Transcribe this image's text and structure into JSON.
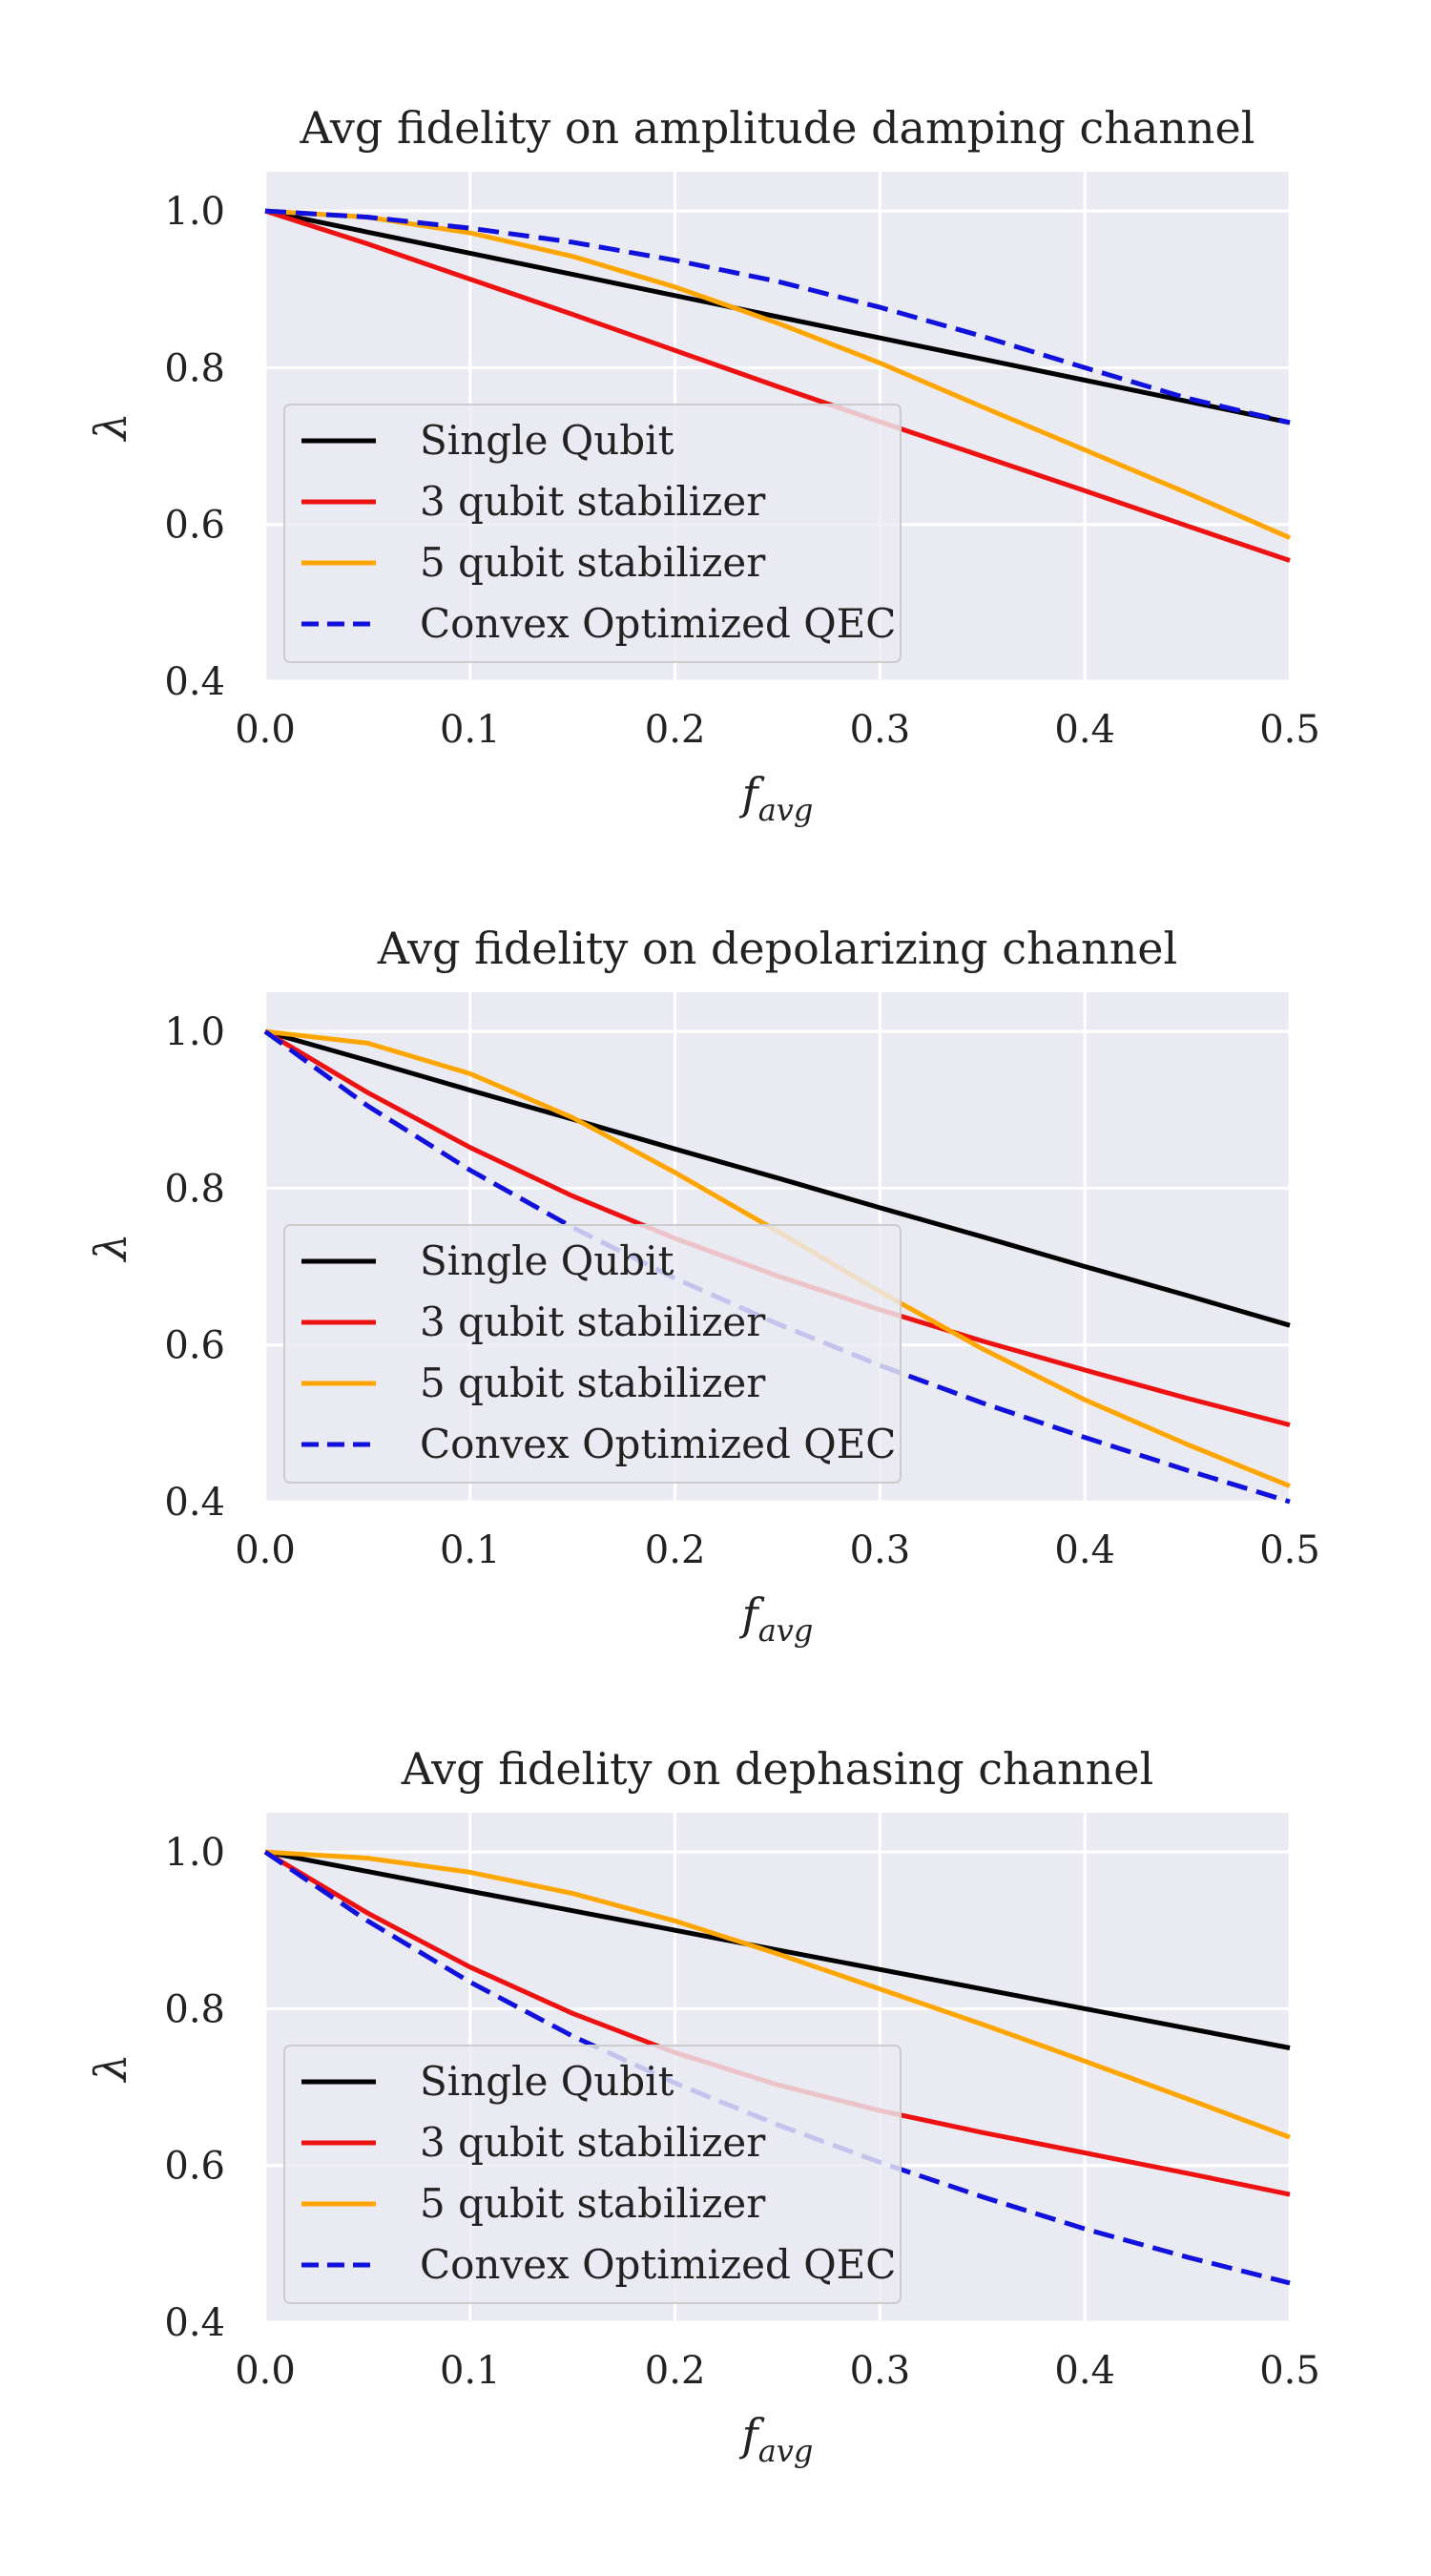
{
  "chart_data": [
    {
      "type": "line",
      "title": "Avg fidelity on amplitude damping channel",
      "xlabel": "f",
      "xlabel_sub": "avg",
      "ylabel": "λ",
      "xlim": [
        0.0,
        0.5
      ],
      "ylim": [
        0.4,
        1.05
      ],
      "xticks": [
        "0.0",
        "0.1",
        "0.2",
        "0.3",
        "0.4",
        "0.5"
      ],
      "yticks": [
        "0.4",
        "0.6",
        "0.8",
        "1.0"
      ],
      "grid": true,
      "legend_position": "lower-left",
      "x": [
        0.0,
        0.05,
        0.1,
        0.15,
        0.2,
        0.25,
        0.3,
        0.35,
        0.4,
        0.45,
        0.5
      ],
      "series": [
        {
          "name": "Single Qubit",
          "color": "#000000",
          "dash": false,
          "values": [
            1.0,
            0.973,
            0.946,
            0.919,
            0.892,
            0.865,
            0.838,
            0.811,
            0.784,
            0.757,
            0.73
          ]
        },
        {
          "name": "3 qubit stabilizer",
          "color": "#ee1111",
          "dash": false,
          "values": [
            1.0,
            0.958,
            0.913,
            0.868,
            0.822,
            0.776,
            0.731,
            0.687,
            0.643,
            0.598,
            0.554
          ]
        },
        {
          "name": "5 qubit stabilizer",
          "color": "#ffa500",
          "dash": false,
          "values": [
            1.0,
            0.992,
            0.972,
            0.942,
            0.903,
            0.857,
            0.806,
            0.75,
            0.695,
            0.64,
            0.583
          ]
        },
        {
          "name": "Convex Optimized QEC",
          "color": "#1111dd",
          "dash": true,
          "values": [
            1.0,
            0.992,
            0.978,
            0.96,
            0.937,
            0.91,
            0.877,
            0.84,
            0.8,
            0.761,
            0.73
          ]
        }
      ]
    },
    {
      "type": "line",
      "title": "Avg fidelity on depolarizing channel",
      "xlabel": "f",
      "xlabel_sub": "avg",
      "ylabel": "λ",
      "xlim": [
        0.0,
        0.5
      ],
      "ylim": [
        0.4,
        1.05
      ],
      "xticks": [
        "0.0",
        "0.1",
        "0.2",
        "0.3",
        "0.4",
        "0.5"
      ],
      "yticks": [
        "0.4",
        "0.6",
        "0.8",
        "1.0"
      ],
      "grid": true,
      "legend_position": "lower-left",
      "x": [
        0.0,
        0.05,
        0.1,
        0.15,
        0.2,
        0.25,
        0.3,
        0.35,
        0.4,
        0.45,
        0.5
      ],
      "series": [
        {
          "name": "Single Qubit",
          "color": "#000000",
          "dash": false,
          "values": [
            1.0,
            0.963,
            0.925,
            0.888,
            0.85,
            0.813,
            0.775,
            0.738,
            0.7,
            0.663,
            0.625
          ]
        },
        {
          "name": "3 qubit stabilizer",
          "color": "#ee1111",
          "dash": false,
          "values": [
            1.0,
            0.922,
            0.852,
            0.79,
            0.736,
            0.688,
            0.645,
            0.605,
            0.568,
            0.532,
            0.498
          ]
        },
        {
          "name": "5 qubit stabilizer",
          "color": "#ffa500",
          "dash": false,
          "values": [
            1.0,
            0.985,
            0.946,
            0.89,
            0.82,
            0.745,
            0.668,
            0.595,
            0.53,
            0.473,
            0.42
          ]
        },
        {
          "name": "Convex Optimized QEC",
          "color": "#1111dd",
          "dash": true,
          "values": [
            1.0,
            0.905,
            0.823,
            0.75,
            0.685,
            0.627,
            0.574,
            0.526,
            0.482,
            0.44,
            0.4
          ]
        }
      ]
    },
    {
      "type": "line",
      "title": "Avg fidelity on dephasing channel",
      "xlabel": "f",
      "xlabel_sub": "avg",
      "ylabel": "λ",
      "xlim": [
        0.0,
        0.5
      ],
      "ylim": [
        0.4,
        1.05
      ],
      "xticks": [
        "0.0",
        "0.1",
        "0.2",
        "0.3",
        "0.4",
        "0.5"
      ],
      "yticks": [
        "0.4",
        "0.6",
        "0.8",
        "1.0"
      ],
      "grid": true,
      "legend_position": "lower-left",
      "x": [
        0.0,
        0.05,
        0.1,
        0.15,
        0.2,
        0.25,
        0.3,
        0.35,
        0.4,
        0.45,
        0.5
      ],
      "series": [
        {
          "name": "Single Qubit",
          "color": "#000000",
          "dash": false,
          "values": [
            1.0,
            0.975,
            0.95,
            0.925,
            0.9,
            0.875,
            0.85,
            0.825,
            0.8,
            0.775,
            0.75
          ]
        },
        {
          "name": "3 qubit stabilizer",
          "color": "#ee1111",
          "dash": false,
          "values": [
            1.0,
            0.922,
            0.853,
            0.794,
            0.744,
            0.703,
            0.67,
            0.642,
            0.616,
            0.59,
            0.563
          ]
        },
        {
          "name": "5 qubit stabilizer",
          "color": "#ffa500",
          "dash": false,
          "values": [
            1.0,
            0.992,
            0.974,
            0.947,
            0.912,
            0.87,
            0.825,
            0.78,
            0.733,
            0.685,
            0.636
          ]
        },
        {
          "name": "Convex Optimized QEC",
          "color": "#1111dd",
          "dash": true,
          "values": [
            1.0,
            0.912,
            0.834,
            0.765,
            0.705,
            0.652,
            0.604,
            0.56,
            0.519,
            0.483,
            0.45
          ]
        }
      ]
    }
  ]
}
